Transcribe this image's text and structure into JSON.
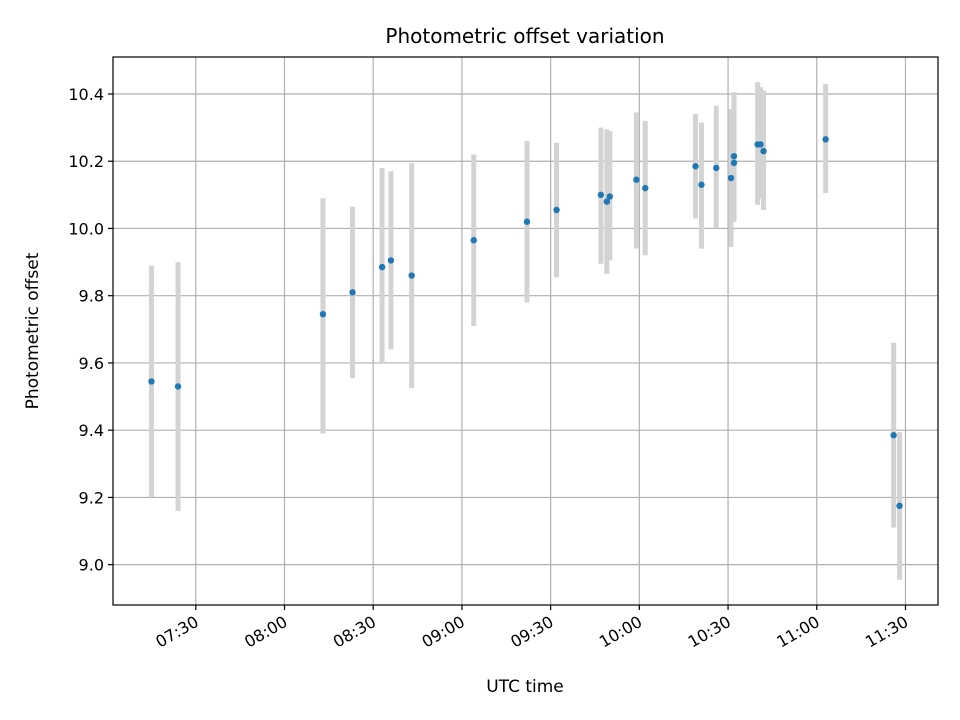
{
  "chart_data": {
    "type": "scatter",
    "title": "Photometric offset variation",
    "xlabel": "UTC time",
    "ylabel": "Photometric offset",
    "x_tick_labels": [
      "07:30",
      "08:00",
      "08:30",
      "09:00",
      "09:30",
      "10:00",
      "10:30",
      "11:00",
      "11:30"
    ],
    "y_tick_labels": [
      "9.0",
      "9.2",
      "9.4",
      "9.6",
      "9.8",
      "10.0",
      "10.2",
      "10.4"
    ],
    "y_ticks": [
      9.0,
      9.2,
      9.4,
      9.6,
      9.8,
      10.0,
      10.2,
      10.4
    ],
    "xlim": [
      "07:02",
      "11:41"
    ],
    "ylim": [
      8.88,
      10.51
    ],
    "grid": true,
    "colors": {
      "point": "#1f77b4",
      "errorbar": "#d3d3d3",
      "grid": "#b0b0b0"
    },
    "points": [
      {
        "x": "07:15",
        "y": 9.545,
        "ylo": 9.2,
        "yhi": 9.89
      },
      {
        "x": "07:24",
        "y": 9.53,
        "ylo": 9.16,
        "yhi": 9.9
      },
      {
        "x": "08:13",
        "y": 9.745,
        "ylo": 9.39,
        "yhi": 10.09
      },
      {
        "x": "08:23",
        "y": 9.81,
        "ylo": 9.555,
        "yhi": 10.065
      },
      {
        "x": "08:33",
        "y": 9.885,
        "ylo": 9.6,
        "yhi": 10.18
      },
      {
        "x": "08:36",
        "y": 9.905,
        "ylo": 9.64,
        "yhi": 10.17
      },
      {
        "x": "08:43",
        "y": 9.86,
        "ylo": 9.525,
        "yhi": 10.195
      },
      {
        "x": "09:04",
        "y": 9.965,
        "ylo": 9.71,
        "yhi": 10.22
      },
      {
        "x": "09:22",
        "y": 10.02,
        "ylo": 9.78,
        "yhi": 10.26
      },
      {
        "x": "09:32",
        "y": 10.055,
        "ylo": 9.855,
        "yhi": 10.255
      },
      {
        "x": "09:47",
        "y": 10.1,
        "ylo": 9.895,
        "yhi": 10.3
      },
      {
        "x": "09:49",
        "y": 10.08,
        "ylo": 9.865,
        "yhi": 10.295
      },
      {
        "x": "09:50",
        "y": 10.095,
        "ylo": 9.905,
        "yhi": 10.29
      },
      {
        "x": "09:59",
        "y": 10.145,
        "ylo": 9.94,
        "yhi": 10.345
      },
      {
        "x": "10:02",
        "y": 10.12,
        "ylo": 9.92,
        "yhi": 10.32
      },
      {
        "x": "10:19",
        "y": 10.185,
        "ylo": 10.03,
        "yhi": 10.34
      },
      {
        "x": "10:21",
        "y": 10.13,
        "ylo": 9.94,
        "yhi": 10.315
      },
      {
        "x": "10:26",
        "y": 10.18,
        "ylo": 10.0,
        "yhi": 10.365
      },
      {
        "x": "10:31",
        "y": 10.15,
        "ylo": 9.945,
        "yhi": 10.355
      },
      {
        "x": "10:32",
        "y": 10.195,
        "ylo": 10.02,
        "yhi": 10.39
      },
      {
        "x": "10:32",
        "y": 10.215,
        "ylo": 10.025,
        "yhi": 10.405
      },
      {
        "x": "10:40",
        "y": 10.25,
        "ylo": 10.07,
        "yhi": 10.435
      },
      {
        "x": "10:41",
        "y": 10.25,
        "ylo": 10.09,
        "yhi": 10.42
      },
      {
        "x": "10:42",
        "y": 10.23,
        "ylo": 10.055,
        "yhi": 10.41
      },
      {
        "x": "11:03",
        "y": 10.265,
        "ylo": 10.105,
        "yhi": 10.43
      },
      {
        "x": "11:26",
        "y": 9.385,
        "ylo": 9.11,
        "yhi": 9.66
      },
      {
        "x": "11:28",
        "y": 9.175,
        "ylo": 8.955,
        "yhi": 9.395
      }
    ]
  }
}
